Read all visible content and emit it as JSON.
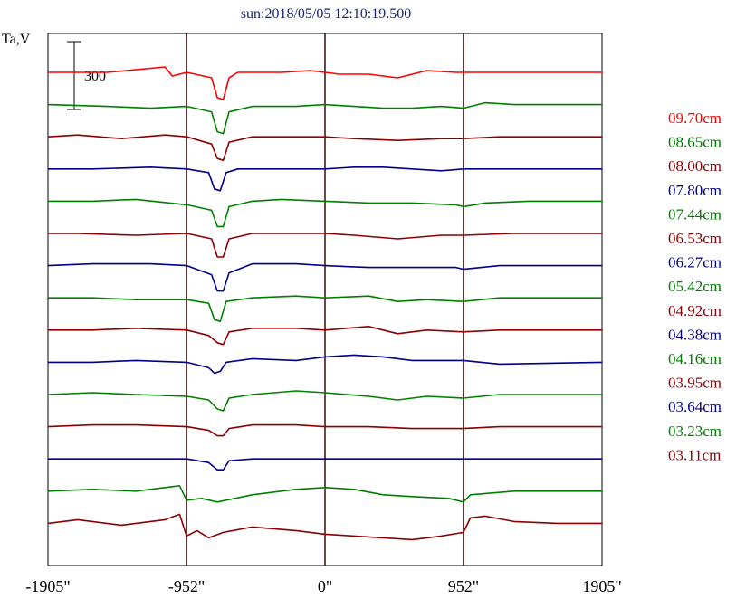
{
  "chart_data": {
    "type": "line",
    "title": "sun:2018/05/05 12:10:19.500",
    "ylabel": "Ta,V",
    "scale_bar_label": "300",
    "x_ticks": [
      {
        "value": -1905,
        "label": "-1905\""
      },
      {
        "value": -952,
        "label": "-952\""
      },
      {
        "value": 0,
        "label": "0\""
      },
      {
        "value": 952,
        "label": "952\""
      },
      {
        "value": 1905,
        "label": "1905\""
      }
    ],
    "xlim": [
      -1905,
      1905
    ],
    "vertical_lines": [
      -952,
      0,
      952
    ],
    "grid": false,
    "legend_position": "right",
    "series": [
      {
        "name": "09.70cm",
        "color": "#ff0000",
        "points": [
          [
            -1905,
            0
          ],
          [
            -1500,
            0
          ],
          [
            -1100,
            6
          ],
          [
            -1050,
            -4
          ],
          [
            -950,
            0
          ],
          [
            -780,
            -6
          ],
          [
            -740,
            -28
          ],
          [
            -700,
            -30
          ],
          [
            -660,
            -6
          ],
          [
            -600,
            0
          ],
          [
            -300,
            0
          ],
          [
            -100,
            2
          ],
          [
            100,
            -2
          ],
          [
            300,
            -2
          ],
          [
            500,
            -6
          ],
          [
            700,
            2
          ],
          [
            900,
            0
          ],
          [
            1200,
            0
          ],
          [
            1905,
            0
          ]
        ]
      },
      {
        "name": "08.65cm",
        "color": "#008000",
        "points": [
          [
            -1905,
            0
          ],
          [
            -1500,
            -2
          ],
          [
            -1200,
            -4
          ],
          [
            -950,
            -2
          ],
          [
            -780,
            -8
          ],
          [
            -740,
            -30
          ],
          [
            -700,
            -32
          ],
          [
            -660,
            -8
          ],
          [
            -500,
            -2
          ],
          [
            -200,
            -2
          ],
          [
            0,
            0
          ],
          [
            200,
            -2
          ],
          [
            400,
            -4
          ],
          [
            600,
            -4
          ],
          [
            800,
            -2
          ],
          [
            952,
            -4
          ],
          [
            1100,
            2
          ],
          [
            1300,
            0
          ],
          [
            1905,
            0
          ]
        ]
      },
      {
        "name": "08.00cm",
        "color": "#8b0000",
        "points": [
          [
            -1905,
            0
          ],
          [
            -1700,
            2
          ],
          [
            -1400,
            -2
          ],
          [
            -1100,
            2
          ],
          [
            -950,
            0
          ],
          [
            -780,
            -8
          ],
          [
            -740,
            -24
          ],
          [
            -700,
            -26
          ],
          [
            -660,
            -6
          ],
          [
            -500,
            0
          ],
          [
            -200,
            0
          ],
          [
            0,
            0
          ],
          [
            200,
            -2
          ],
          [
            500,
            -4
          ],
          [
            800,
            -2
          ],
          [
            952,
            -2
          ],
          [
            1200,
            0
          ],
          [
            1905,
            0
          ]
        ]
      },
      {
        "name": "07.80cm",
        "color": "#00008b",
        "points": [
          [
            -1905,
            0
          ],
          [
            -1600,
            0
          ],
          [
            -1200,
            2
          ],
          [
            -950,
            0
          ],
          [
            -800,
            -4
          ],
          [
            -760,
            -22
          ],
          [
            -720,
            -24
          ],
          [
            -680,
            -4
          ],
          [
            -600,
            0
          ],
          [
            -300,
            0
          ],
          [
            0,
            0
          ],
          [
            200,
            2
          ],
          [
            400,
            2
          ],
          [
            600,
            0
          ],
          [
            800,
            -2
          ],
          [
            952,
            0
          ],
          [
            1200,
            0
          ],
          [
            1905,
            0
          ]
        ]
      },
      {
        "name": "07.44cm",
        "color": "#008000",
        "points": [
          [
            -1905,
            0
          ],
          [
            -1600,
            0
          ],
          [
            -1300,
            2
          ],
          [
            -950,
            -4
          ],
          [
            -780,
            -10
          ],
          [
            -740,
            -28
          ],
          [
            -700,
            -28
          ],
          [
            -660,
            -6
          ],
          [
            -500,
            0
          ],
          [
            -300,
            2
          ],
          [
            0,
            0
          ],
          [
            300,
            -2
          ],
          [
            600,
            -2
          ],
          [
            900,
            -4
          ],
          [
            952,
            -6
          ],
          [
            1100,
            -2
          ],
          [
            1400,
            0
          ],
          [
            1905,
            0
          ]
        ]
      },
      {
        "name": "06.53cm",
        "color": "#8b0000",
        "points": [
          [
            -1905,
            0
          ],
          [
            -1700,
            0
          ],
          [
            -1300,
            -2
          ],
          [
            -950,
            0
          ],
          [
            -780,
            -6
          ],
          [
            -740,
            -26
          ],
          [
            -700,
            -26
          ],
          [
            -660,
            -6
          ],
          [
            -500,
            0
          ],
          [
            -200,
            0
          ],
          [
            0,
            0
          ],
          [
            200,
            -2
          ],
          [
            500,
            -6
          ],
          [
            800,
            -2
          ],
          [
            952,
            -2
          ],
          [
            1300,
            0
          ],
          [
            1905,
            0
          ]
        ]
      },
      {
        "name": "06.27cm",
        "color": "#00008b",
        "points": [
          [
            -1905,
            0
          ],
          [
            -1600,
            2
          ],
          [
            -1200,
            2
          ],
          [
            -950,
            0
          ],
          [
            -780,
            -10
          ],
          [
            -740,
            -28
          ],
          [
            -700,
            -28
          ],
          [
            -660,
            -8
          ],
          [
            -500,
            2
          ],
          [
            -200,
            2
          ],
          [
            0,
            0
          ],
          [
            300,
            -2
          ],
          [
            600,
            -2
          ],
          [
            900,
            -2
          ],
          [
            952,
            -4
          ],
          [
            1200,
            0
          ],
          [
            1905,
            0
          ]
        ]
      },
      {
        "name": "05.42cm",
        "color": "#008000",
        "points": [
          [
            -1905,
            0
          ],
          [
            -1600,
            0
          ],
          [
            -1300,
            -2
          ],
          [
            -950,
            -2
          ],
          [
            -800,
            -6
          ],
          [
            -760,
            -24
          ],
          [
            -720,
            -26
          ],
          [
            -680,
            -4
          ],
          [
            -500,
            0
          ],
          [
            -200,
            2
          ],
          [
            0,
            0
          ],
          [
            300,
            2
          ],
          [
            500,
            -4
          ],
          [
            700,
            -2
          ],
          [
            952,
            -4
          ],
          [
            1200,
            0
          ],
          [
            1905,
            0
          ]
        ]
      },
      {
        "name": "04.92cm",
        "color": "#8b0000",
        "points": [
          [
            -1905,
            0
          ],
          [
            -1600,
            0
          ],
          [
            -1300,
            2
          ],
          [
            -950,
            0
          ],
          [
            -800,
            -6
          ],
          [
            -740,
            -14
          ],
          [
            -700,
            -16
          ],
          [
            -660,
            -2
          ],
          [
            -500,
            2
          ],
          [
            -200,
            2
          ],
          [
            0,
            0
          ],
          [
            300,
            4
          ],
          [
            500,
            -4
          ],
          [
            700,
            0
          ],
          [
            952,
            -2
          ],
          [
            1200,
            0
          ],
          [
            1905,
            0
          ]
        ]
      },
      {
        "name": "04.38cm",
        "color": "#00008b",
        "points": [
          [
            -1905,
            0
          ],
          [
            -1600,
            0
          ],
          [
            -1300,
            2
          ],
          [
            -950,
            0
          ],
          [
            -800,
            -6
          ],
          [
            -760,
            -12
          ],
          [
            -720,
            -10
          ],
          [
            -680,
            0
          ],
          [
            -500,
            4
          ],
          [
            -200,
            2
          ],
          [
            0,
            6
          ],
          [
            200,
            8
          ],
          [
            400,
            6
          ],
          [
            600,
            2
          ],
          [
            952,
            2
          ],
          [
            1200,
            -2
          ],
          [
            1905,
            0
          ]
        ]
      },
      {
        "name": "04.16cm",
        "color": "#008000",
        "points": [
          [
            -1905,
            0
          ],
          [
            -1600,
            2
          ],
          [
            -1300,
            0
          ],
          [
            -950,
            -2
          ],
          [
            -800,
            -6
          ],
          [
            -740,
            -16
          ],
          [
            -700,
            -18
          ],
          [
            -660,
            -4
          ],
          [
            -500,
            0
          ],
          [
            -200,
            4
          ],
          [
            0,
            2
          ],
          [
            300,
            -2
          ],
          [
            500,
            -6
          ],
          [
            700,
            -2
          ],
          [
            952,
            -4
          ],
          [
            1200,
            0
          ],
          [
            1905,
            0
          ]
        ]
      },
      {
        "name": "03.95cm",
        "color": "#8b0000",
        "points": [
          [
            -1905,
            0
          ],
          [
            -1600,
            2
          ],
          [
            -1300,
            2
          ],
          [
            -950,
            0
          ],
          [
            -800,
            -4
          ],
          [
            -740,
            -10
          ],
          [
            -700,
            -10
          ],
          [
            -660,
            -2
          ],
          [
            -500,
            2
          ],
          [
            -200,
            2
          ],
          [
            0,
            0
          ],
          [
            300,
            0
          ],
          [
            600,
            -2
          ],
          [
            952,
            -2
          ],
          [
            1200,
            0
          ],
          [
            1905,
            0
          ]
        ]
      },
      {
        "name": "03.64cm",
        "color": "#00008b",
        "points": [
          [
            -1905,
            0
          ],
          [
            -1600,
            0
          ],
          [
            -1300,
            0
          ],
          [
            -950,
            0
          ],
          [
            -800,
            -4
          ],
          [
            -740,
            -12
          ],
          [
            -700,
            -12
          ],
          [
            -660,
            -2
          ],
          [
            -500,
            0
          ],
          [
            -200,
            0
          ],
          [
            0,
            0
          ],
          [
            300,
            0
          ],
          [
            600,
            0
          ],
          [
            952,
            0
          ],
          [
            1200,
            0
          ],
          [
            1905,
            0
          ]
        ]
      },
      {
        "name": "03.23cm",
        "color": "#008000",
        "points": [
          [
            -1905,
            0
          ],
          [
            -1600,
            2
          ],
          [
            -1300,
            0
          ],
          [
            -1000,
            6
          ],
          [
            -952,
            -10
          ],
          [
            -850,
            -8
          ],
          [
            -740,
            -12
          ],
          [
            -500,
            -4
          ],
          [
            -200,
            2
          ],
          [
            0,
            4
          ],
          [
            200,
            2
          ],
          [
            400,
            -4
          ],
          [
            600,
            -6
          ],
          [
            850,
            -8
          ],
          [
            952,
            -12
          ],
          [
            1000,
            -4
          ],
          [
            1300,
            0
          ],
          [
            1905,
            0
          ]
        ]
      },
      {
        "name": "03.11cm",
        "color": "#8b0000",
        "points": [
          [
            -1905,
            0
          ],
          [
            -1700,
            4
          ],
          [
            -1400,
            -2
          ],
          [
            -1100,
            4
          ],
          [
            -1000,
            10
          ],
          [
            -952,
            -14
          ],
          [
            -880,
            -8
          ],
          [
            -800,
            -16
          ],
          [
            -700,
            -10
          ],
          [
            -500,
            -4
          ],
          [
            -200,
            -8
          ],
          [
            0,
            -12
          ],
          [
            200,
            -14
          ],
          [
            400,
            -16
          ],
          [
            600,
            -18
          ],
          [
            800,
            -14
          ],
          [
            952,
            -10
          ],
          [
            1000,
            6
          ],
          [
            1100,
            8
          ],
          [
            1300,
            2
          ],
          [
            1600,
            0
          ],
          [
            1905,
            0
          ]
        ]
      }
    ]
  }
}
